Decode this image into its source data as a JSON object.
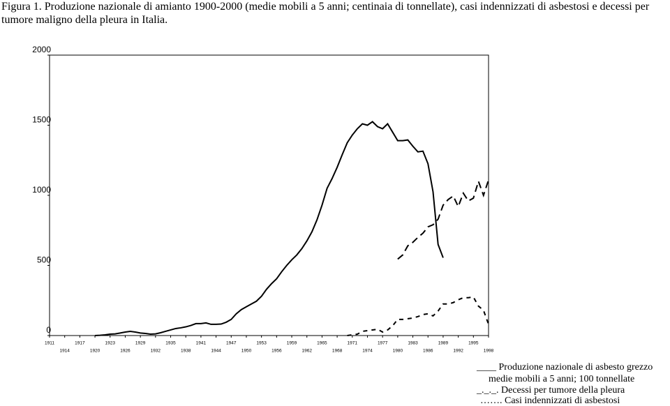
{
  "chart_data": {
    "type": "line",
    "title": "Figura 1. Produzione nazionale di amianto 1900-2000 (medie mobili a 5 anni; centinaia di tonnellate), casi indennizzati di asbestosi e decessi per tumore maligno della pleura in Italia.",
    "xlim": [
      1911,
      1998
    ],
    "ylim": [
      0,
      2000
    ],
    "xticks": [
      1911,
      1914,
      1917,
      1920,
      1923,
      1926,
      1929,
      1932,
      1935,
      1938,
      1941,
      1944,
      1947,
      1950,
      1953,
      1956,
      1959,
      1962,
      1965,
      1968,
      1971,
      1974,
      1977,
      1980,
      1983,
      1986,
      1989,
      1992,
      1995,
      1998
    ],
    "yticks": [
      0,
      500,
      1000,
      1500,
      2000
    ],
    "grid": false,
    "legend_note": "medie mobili a 5 anni; 100 tonnellate",
    "series": [
      {
        "name": "____ Produzione nazionale di asbesto grezzo",
        "color": "#000000",
        "line_style": "solid",
        "x": [
          1920,
          1921,
          1922,
          1923,
          1924,
          1925,
          1926,
          1927,
          1928,
          1929,
          1930,
          1931,
          1932,
          1933,
          1934,
          1935,
          1936,
          1937,
          1938,
          1939,
          1940,
          1941,
          1942,
          1943,
          1944,
          1945,
          1946,
          1947,
          1948,
          1949,
          1950,
          1951,
          1952,
          1953,
          1954,
          1955,
          1956,
          1957,
          1958,
          1959,
          1960,
          1961,
          1962,
          1963,
          1964,
          1965,
          1966,
          1967,
          1968,
          1969,
          1970,
          1971,
          1972,
          1973,
          1974,
          1975,
          1976,
          1977,
          1978,
          1979,
          1980,
          1981,
          1982,
          1983,
          1984,
          1985,
          1986,
          1987,
          1988,
          1989
        ],
        "values": [
          0,
          2,
          5,
          10,
          12,
          18,
          25,
          30,
          25,
          18,
          15,
          10,
          12,
          20,
          30,
          40,
          50,
          55,
          62,
          72,
          85,
          85,
          90,
          80,
          80,
          82,
          95,
          115,
          155,
          185,
          205,
          225,
          245,
          280,
          330,
          370,
          405,
          455,
          500,
          540,
          575,
          620,
          675,
          740,
          825,
          930,
          1050,
          1120,
          1200,
          1290,
          1375,
          1430,
          1475,
          1510,
          1500,
          1525,
          1490,
          1475,
          1510,
          1450,
          1390,
          1390,
          1395,
          1350,
          1310,
          1315,
          1225,
          1025,
          650,
          555
        ]
      },
      {
        "name": "_._._. Decessi per tumore della pleura",
        "color": "#000000",
        "line_style": "dashed",
        "x": [
          1980,
          1981,
          1982,
          1983,
          1984,
          1985,
          1986,
          1987,
          1988,
          1989,
          1990,
          1991,
          1992,
          1993,
          1994,
          1995,
          1996,
          1997,
          1998
        ],
        "values": [
          545,
          575,
          640,
          665,
          700,
          730,
          775,
          790,
          830,
          930,
          970,
          995,
          920,
          1015,
          960,
          980,
          1100,
          1000,
          1110
        ]
      },
      {
        "name": "……. Casi indennizzati di asbestosi",
        "color": "#000000",
        "line_style": "dotted",
        "x": [
          1970,
          1971,
          1972,
          1973,
          1974,
          1975,
          1976,
          1977,
          1978,
          1979,
          1980,
          1981,
          1982,
          1983,
          1984,
          1985,
          1986,
          1987,
          1988,
          1989,
          1990,
          1991,
          1992,
          1993,
          1994,
          1995,
          1996,
          1997,
          1998
        ],
        "values": [
          0,
          5,
          10,
          30,
          35,
          40,
          45,
          25,
          40,
          70,
          115,
          115,
          120,
          125,
          135,
          150,
          155,
          140,
          175,
          225,
          225,
          235,
          255,
          270,
          270,
          275,
          210,
          180,
          80
        ]
      }
    ]
  }
}
